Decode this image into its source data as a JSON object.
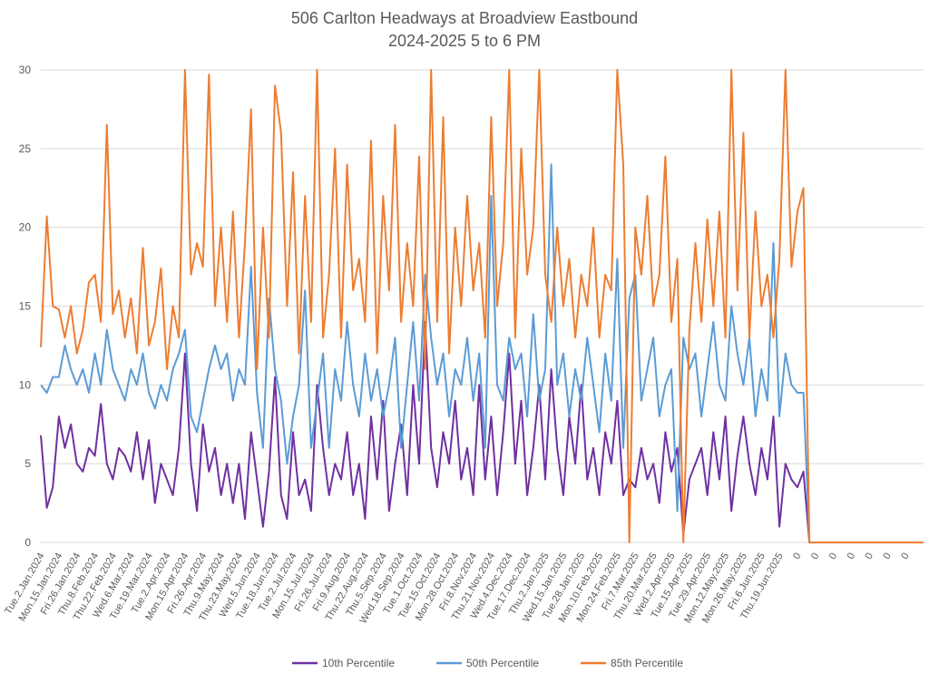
{
  "chart_data": {
    "type": "line",
    "title": [
      "506 Carlton Headways at Broadview Eastbound",
      "2024-2025 5 to 6 PM"
    ],
    "xlabel": "",
    "ylabel": "",
    "ylim": [
      0,
      30
    ],
    "yticks": [
      0,
      5,
      10,
      15,
      20,
      25,
      30
    ],
    "grid": true,
    "legend_position": "bottom",
    "x_tick_labels": [
      "Tue.2.Jan.2024",
      "Mon.15.Jan.2024",
      "Fri.26.Jan.2024",
      "Thu.8.Feb.2024",
      "Thu.22.Feb.2024",
      "Wed.6.Mar.2024",
      "Tue.19.Mar.2024",
      "Tue.2.Apr.2024",
      "Mon.15.Apr.2024",
      "Fri.26.Apr.2024",
      "Thu.9.May.2024",
      "Thu.23.May.2024",
      "Wed.5.Jun.2024",
      "Tue.18.Jun.2024",
      "Tue.2.Jul.2024",
      "Mon.15.Jul.2024",
      "Fri.26.Jul.2024",
      "Fri.9.Aug.2024",
      "Thu.22.Aug.2024",
      "Thu.5.Sep.2024",
      "Wed.18.Sep.2024",
      "Tue.1.Oct.2024",
      "Tue.15.Oct.2024",
      "Mon.28.Oct.2024",
      "Fri.8.Nov.2024",
      "Thu.21.Nov.2024",
      "Wed.4.Dec.2024",
      "Tue.17.Dec.2024",
      "Thu.2.Jan.2025",
      "Wed.15.Jan.2025",
      "Tue.28.Jan.2025",
      "Mon.10.Feb.2025",
      "Mon.24.Feb.2025",
      "Fri.7.Mar.2025",
      "Thu.20.Mar.2025",
      "Wed.2.Apr.2025",
      "Tue.15.Apr.2025",
      "Tue.29.Apr.2025",
      "Mon.12.May.2025",
      "Mon.26.May.2025",
      "Fri.6.Jun.2025",
      "Thu.19.Jun.2025",
      "0",
      "0",
      "0",
      "0",
      "0",
      "0",
      "0"
    ],
    "series": [
      {
        "name": "10th Percentile",
        "color": "#7030A0",
        "values": [
          6.8,
          2.2,
          3.5,
          8,
          6,
          7.5,
          5,
          4.5,
          6,
          5.5,
          8.8,
          5,
          4,
          6,
          5.5,
          4.5,
          7,
          4,
          6.5,
          2.5,
          5,
          4,
          3,
          6,
          12,
          5,
          2,
          7.5,
          4.5,
          6,
          3,
          5,
          2.5,
          5,
          1.5,
          7,
          4,
          1,
          4.5,
          10.5,
          3,
          1.5,
          7,
          3,
          4,
          2,
          10,
          6,
          3,
          5,
          4,
          7,
          3,
          5,
          1.5,
          8,
          4,
          9,
          2,
          5,
          7.5,
          3,
          10,
          5,
          14,
          6,
          3.5,
          7,
          5,
          9,
          4,
          6,
          3,
          10,
          4,
          8,
          3,
          7,
          12,
          5,
          9,
          3,
          6,
          10,
          4,
          11,
          6,
          3,
          8,
          5,
          10,
          4,
          6,
          3,
          7,
          5,
          9,
          3,
          4,
          3.5,
          6,
          4,
          5,
          2.5,
          7,
          4.5,
          6,
          0.5,
          4,
          5,
          6,
          3,
          7,
          4,
          8,
          2,
          5.5,
          8,
          5,
          3,
          6,
          4,
          8,
          1,
          5,
          4,
          3.5,
          4.5,
          0,
          0,
          0,
          0,
          0,
          0,
          0,
          0,
          0,
          0,
          0,
          0,
          0,
          0,
          0,
          0,
          0,
          0,
          0,
          0
        ]
      },
      {
        "name": "50th Percentile",
        "color": "#5B9BD5",
        "values": [
          10,
          9.5,
          10.5,
          10.5,
          12.5,
          11,
          10,
          11,
          9.5,
          12,
          10,
          13.5,
          11,
          10,
          9,
          11,
          10,
          12,
          9.5,
          8.5,
          10,
          9,
          11,
          12,
          13.5,
          8,
          7,
          9,
          11,
          12.5,
          11,
          12,
          9,
          11,
          10,
          17.5,
          9.5,
          6,
          15.5,
          11,
          9,
          5,
          8,
          10,
          16,
          6,
          9,
          12,
          6,
          11,
          9,
          14,
          10,
          8,
          12,
          9,
          11,
          8,
          10,
          13,
          6,
          10,
          14,
          9,
          17,
          13,
          10,
          12,
          8,
          11,
          10,
          13,
          9,
          12,
          6,
          22,
          10,
          9,
          13,
          11,
          12,
          8,
          14.5,
          9,
          11,
          24,
          10,
          12,
          8,
          11,
          9,
          13,
          10,
          7,
          12,
          9,
          18,
          6,
          15.5,
          17,
          9,
          11,
          13,
          8,
          10,
          11,
          2,
          13,
          11,
          12,
          8,
          11,
          14,
          10,
          9,
          15,
          12,
          10,
          13,
          8,
          11,
          9,
          19,
          8,
          12,
          10,
          9.5,
          9.5,
          0,
          0,
          0,
          0,
          0,
          0,
          0,
          0,
          0,
          0,
          0,
          0,
          0,
          0,
          0,
          0,
          0,
          0,
          0,
          0
        ]
      },
      {
        "name": "85th Percentile",
        "color": "#ED7D31",
        "values": [
          12.4,
          20.7,
          15,
          14.8,
          13,
          15,
          12,
          13.5,
          16.5,
          17,
          14,
          26.5,
          14.5,
          16,
          13,
          15.5,
          12,
          18.7,
          12.5,
          14,
          17.4,
          11,
          15,
          13,
          30,
          17,
          19,
          17.5,
          29.7,
          15,
          20,
          14,
          21,
          13,
          19,
          27.5,
          11,
          20,
          13,
          29,
          26,
          15,
          23.5,
          12,
          22,
          14,
          30,
          13,
          17,
          25,
          13,
          24,
          16,
          18,
          14,
          25.5,
          12,
          22,
          16,
          26.5,
          14,
          19,
          15,
          24.5,
          11,
          30,
          14,
          27,
          12,
          20,
          15,
          22,
          16,
          19,
          13,
          27,
          15,
          19,
          30,
          13,
          25,
          17,
          20,
          30,
          17,
          14,
          20,
          15,
          18,
          13,
          17,
          15,
          20,
          13,
          17,
          16,
          30,
          24,
          0,
          20,
          17,
          22,
          15,
          17,
          24.5,
          14,
          18,
          0,
          13.5,
          19,
          14,
          20.5,
          15,
          21,
          13,
          30,
          16,
          26,
          13,
          21,
          15,
          17,
          13,
          18,
          30,
          17.5,
          21,
          22.5,
          0,
          0,
          0,
          0,
          0,
          0,
          0,
          0,
          0,
          0,
          0,
          0,
          0,
          0,
          0,
          0,
          0,
          0,
          0,
          0
        ]
      }
    ]
  }
}
